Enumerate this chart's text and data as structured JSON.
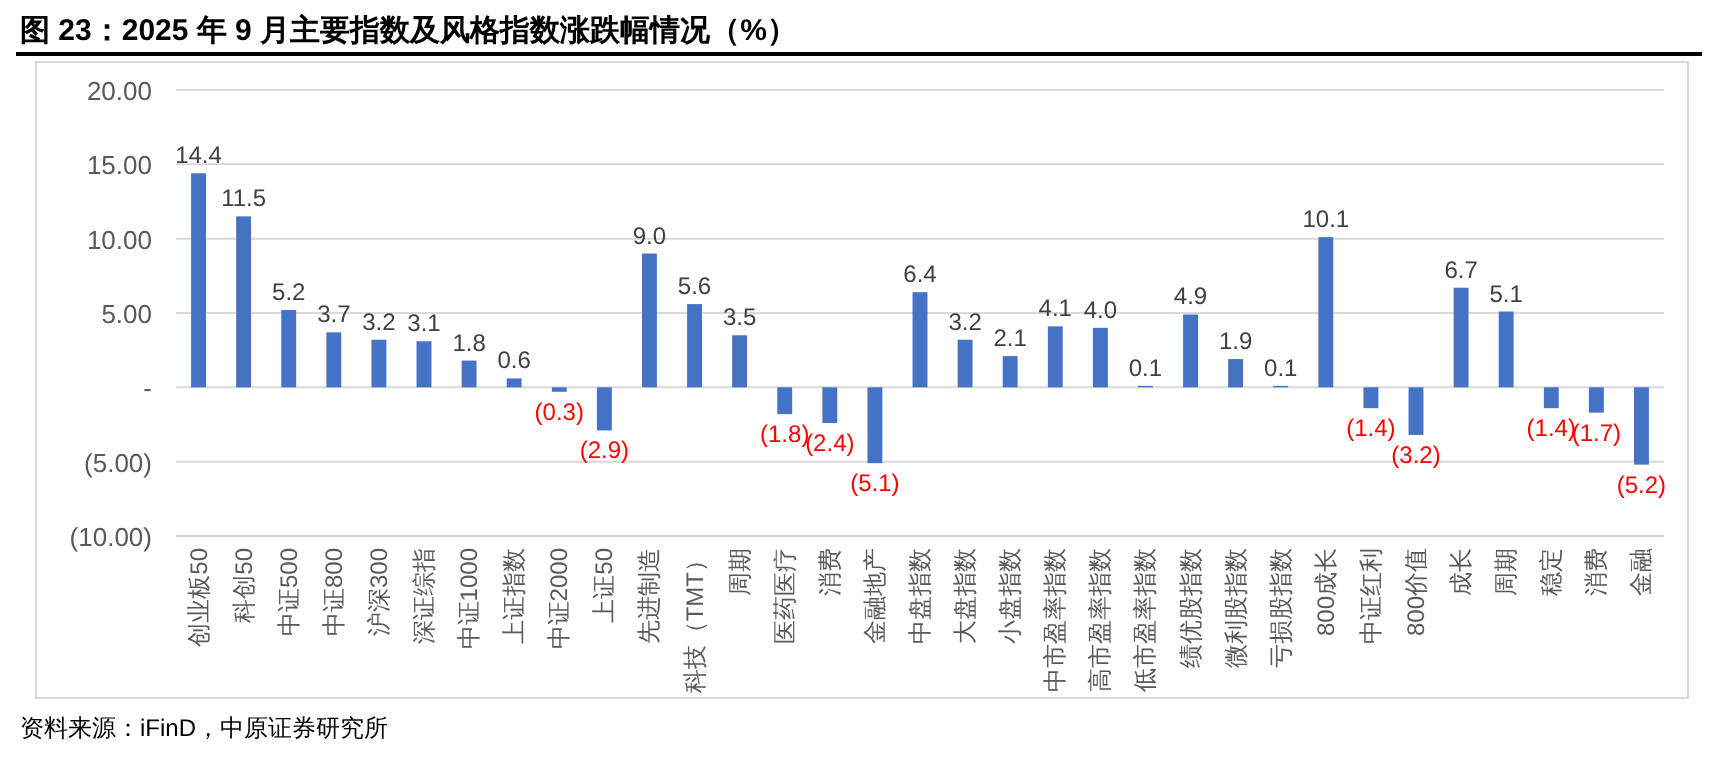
{
  "chart_data": {
    "type": "bar",
    "title": "图 23：2025 年 9 月主要指数及风格指数涨跌幅情况（%）",
    "categories": [
      "创业板50",
      "科创50",
      "中证500",
      "中证800",
      "沪深300",
      "深证综指",
      "中证1000",
      "上证指数",
      "中证2000",
      "上证50",
      "先进制造",
      "科技（TMT）",
      "周期",
      "医药医疗",
      "消费",
      "金融地产",
      "中盘指数",
      "大盘指数",
      "小盘指数",
      "中市盈率指数",
      "高市盈率指数",
      "低市盈率指数",
      "绩优股指数",
      "微利股指数",
      "亏损股指数",
      "800成长",
      "中证红利",
      "800价值",
      "成长",
      "周期",
      "稳定",
      "消费",
      "金融"
    ],
    "values": [
      14.4,
      11.5,
      5.2,
      3.7,
      3.2,
      3.1,
      1.8,
      0.6,
      -0.3,
      -2.9,
      9.0,
      5.6,
      3.5,
      -1.8,
      -2.4,
      -5.1,
      6.4,
      3.2,
      2.1,
      4.1,
      4.0,
      0.1,
      4.9,
      1.9,
      0.1,
      10.1,
      -1.4,
      -3.2,
      6.7,
      5.1,
      -1.4,
      -1.7,
      -5.2
    ],
    "value_labels": [
      "14.4",
      "11.5",
      "5.2",
      "3.7",
      "3.2",
      "3.1",
      "1.8",
      "0.6",
      "(0.3)",
      "(2.9)",
      "9.0",
      "5.6",
      "3.5",
      "(1.8)",
      "(2.4)",
      "(5.1)",
      "6.4",
      "3.2",
      "2.1",
      "4.1",
      "4.0",
      "0.1",
      "4.9",
      "1.9",
      "0.1",
      "10.1",
      "(1.4)",
      "(3.2)",
      "6.7",
      "5.1",
      "(1.4)",
      "(1.7)",
      "(5.2)"
    ],
    "color": "#4472c4",
    "ylim": [
      -10,
      20
    ],
    "yticks": [
      {
        "value": 20,
        "label": "20.00"
      },
      {
        "value": 15,
        "label": "15.00"
      },
      {
        "value": 10,
        "label": "10.00"
      },
      {
        "value": 5,
        "label": "5.00"
      },
      {
        "value": 0,
        "label": "-"
      },
      {
        "value": -5,
        "label": "(5.00)"
      },
      {
        "value": -10,
        "label": "(10.00)"
      }
    ],
    "grid": "y",
    "annotations": [
      "资料来源：iFinD，中原证券研究所"
    ]
  }
}
